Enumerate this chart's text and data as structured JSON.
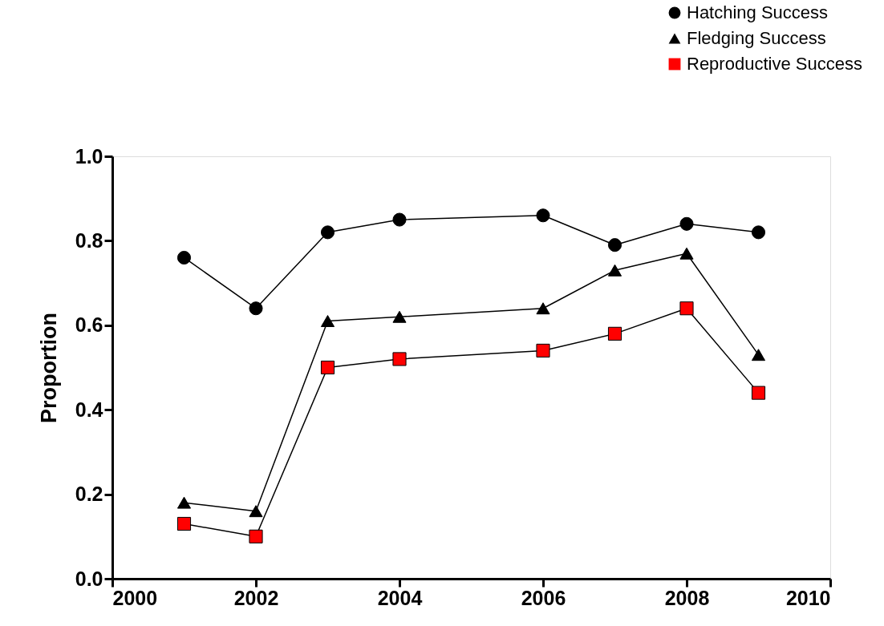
{
  "chart_data": {
    "type": "line",
    "ylabel": "Proportion",
    "x": [
      2001,
      2002,
      2003,
      2004,
      2006,
      2007,
      2008,
      2009
    ],
    "series": [
      {
        "name": "Hatching Success",
        "color": "#000000",
        "marker": "circle",
        "values": [
          0.76,
          0.64,
          0.82,
          0.85,
          0.86,
          0.79,
          0.84,
          0.82
        ]
      },
      {
        "name": "Fledging Success",
        "color": "#000000",
        "marker": "triangle",
        "values": [
          0.18,
          0.16,
          0.61,
          0.62,
          0.64,
          0.73,
          0.77,
          0.53
        ]
      },
      {
        "name": "Reproductive Success",
        "color": "#ff0000",
        "marker": "square",
        "values": [
          0.13,
          0.1,
          0.5,
          0.52,
          0.54,
          0.58,
          0.64,
          0.44
        ]
      }
    ],
    "xlim": [
      2000,
      2010
    ],
    "xticks": [
      2000,
      2002,
      2004,
      2006,
      2008,
      2010
    ],
    "ylim": [
      0,
      1
    ],
    "yticks": [
      {
        "value": 0,
        "label": "0.0"
      },
      {
        "value": 0.2,
        "label": "0.2"
      },
      {
        "value": 0.4,
        "label": "0.4"
      },
      {
        "value": 0.6,
        "label": "0.6"
      },
      {
        "value": 0.8,
        "label": "0.8"
      },
      {
        "value": 1,
        "label": "1.0"
      }
    ],
    "grid": false,
    "legend": "top right",
    "line_style": "solid"
  }
}
